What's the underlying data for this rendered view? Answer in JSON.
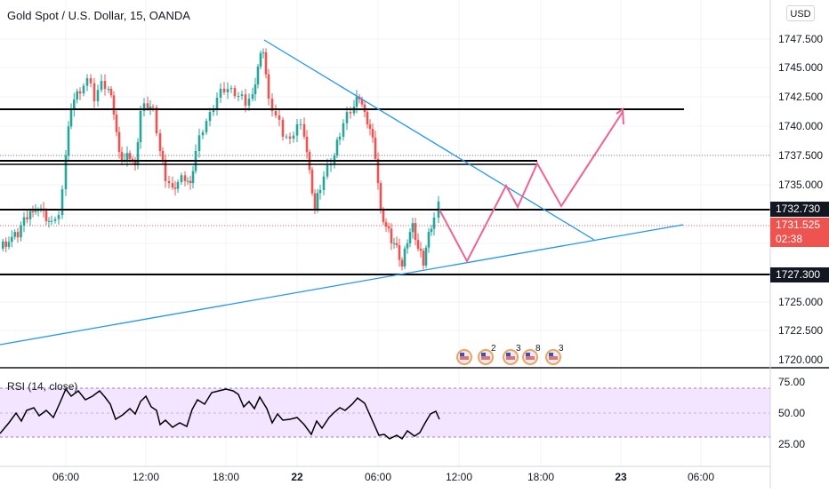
{
  "header": {
    "title": "Gold Spot / U.S. Dollar, 15, OANDA",
    "currency": "USD"
  },
  "price_axis": {
    "labels": [
      "1747.500",
      "1745.000",
      "1742.500",
      "1740.000",
      "1737.500",
      "1735.000",
      "1725.000",
      "1722.500",
      "1720.000"
    ]
  },
  "price_tags": {
    "level_upper": "1732.730",
    "current": "1731.525",
    "countdown": "02:38",
    "level_lower": "1727.300"
  },
  "rsi": {
    "label": "RSI (14, close)",
    "axis_labels": [
      "75.00",
      "50.00",
      "25.00"
    ]
  },
  "time_axis": {
    "labels": [
      "06:00",
      "12:00",
      "18:00",
      "22",
      "06:00",
      "12:00",
      "18:00",
      "23",
      "06:00"
    ]
  },
  "events": [
    {
      "icon": "us-flag-event-icon",
      "count": ""
    },
    {
      "icon": "us-flag-event-icon",
      "count": "2"
    },
    {
      "icon": "us-flag-event-icon",
      "count": "3"
    },
    {
      "icon": "us-flag-event-icon",
      "count": "8"
    },
    {
      "icon": "us-flag-event-icon",
      "count": "3"
    }
  ],
  "colors": {
    "bull": "#26a69a",
    "bear": "#ef5350",
    "trendline": "#2196f3",
    "projection": "#f06292",
    "rsi_band": "#f3e5ff"
  }
}
